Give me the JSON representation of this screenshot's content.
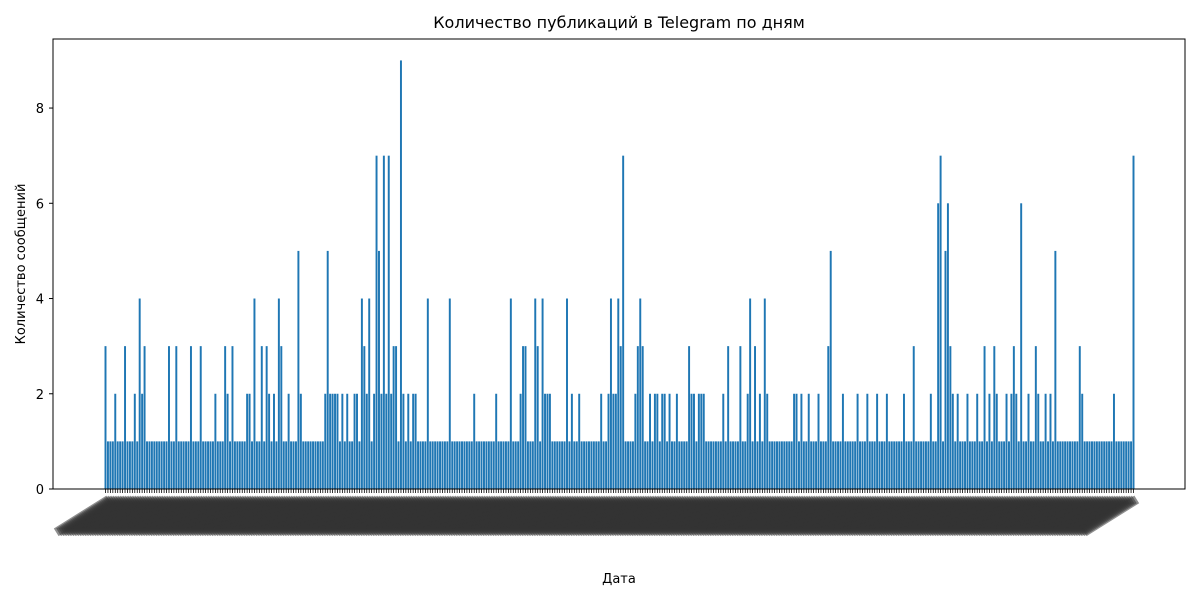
{
  "chart_data": {
    "type": "bar",
    "title": "Количество публикаций в Telegram по дням",
    "xlabel": "Дата",
    "ylabel": "Количество сообщений",
    "ylim": [
      0,
      9.45
    ],
    "yticks": [
      0,
      2,
      4,
      6,
      8
    ],
    "grid": false,
    "color": "#1f77b4",
    "x_tick_labels_note": "",
    "series": [
      {
        "values": [
          3,
          1,
          1,
          1,
          2,
          1,
          1,
          1,
          3,
          1,
          1,
          1,
          2,
          1,
          4,
          2,
          3,
          1,
          1,
          1,
          1,
          1,
          1,
          1,
          1,
          1,
          3,
          1,
          1,
          3,
          1,
          1,
          1,
          1,
          1,
          3,
          1,
          1,
          1,
          3,
          1,
          1,
          1,
          1,
          1,
          2,
          1,
          1,
          1,
          3,
          2,
          1,
          3,
          1,
          1,
          1,
          1,
          1,
          2,
          2,
          1,
          4,
          1,
          1,
          3,
          1,
          3,
          2,
          1,
          2,
          1,
          4,
          3,
          1,
          1,
          2,
          1,
          1,
          1,
          5,
          2,
          1,
          1,
          1,
          1,
          1,
          1,
          1,
          1,
          1,
          2,
          5,
          2,
          2,
          2,
          2,
          1,
          2,
          1,
          2,
          1,
          1,
          2,
          2,
          1,
          4,
          3,
          2,
          4,
          1,
          2,
          7,
          5,
          2,
          7,
          2,
          7,
          2,
          3,
          3,
          1,
          9,
          2,
          1,
          2,
          1,
          2,
          2,
          1,
          1,
          1,
          1,
          4,
          1,
          1,
          1,
          1,
          1,
          1,
          1,
          1,
          4,
          1,
          1,
          1,
          1,
          1,
          1,
          1,
          1,
          1,
          2,
          1,
          1,
          1,
          1,
          1,
          1,
          1,
          1,
          2,
          1,
          1,
          1,
          1,
          1,
          4,
          1,
          1,
          1,
          2,
          3,
          3,
          1,
          1,
          1,
          4,
          3,
          1,
          4,
          2,
          2,
          2,
          1,
          1,
          1,
          1,
          1,
          1,
          4,
          1,
          2,
          1,
          1,
          2,
          1,
          1,
          1,
          1,
          1,
          1,
          1,
          1,
          2,
          1,
          1,
          2,
          4,
          2,
          2,
          4,
          3,
          7,
          1,
          1,
          1,
          1,
          2,
          3,
          4,
          3,
          1,
          1,
          2,
          1,
          2,
          2,
          1,
          2,
          2,
          1,
          2,
          1,
          1,
          2,
          1,
          1,
          1,
          1,
          3,
          2,
          2,
          1,
          2,
          2,
          2,
          1,
          1,
          1,
          1,
          1,
          1,
          1,
          2,
          1,
          3,
          1,
          1,
          1,
          1,
          3,
          1,
          1,
          2,
          4,
          1,
          3,
          1,
          2,
          1,
          4,
          2,
          1,
          1,
          1,
          1,
          1,
          1,
          1,
          1,
          1,
          1,
          2,
          2,
          1,
          2,
          1,
          1,
          2,
          1,
          1,
          1,
          2,
          1,
          1,
          1,
          3,
          5,
          1,
          1,
          1,
          1,
          2,
          1,
          1,
          1,
          1,
          1,
          2,
          1,
          1,
          1,
          2,
          1,
          1,
          1,
          2,
          1,
          1,
          1,
          2,
          1,
          1,
          1,
          1,
          1,
          1,
          2,
          1,
          1,
          1,
          3,
          1,
          1,
          1,
          1,
          1,
          1,
          2,
          1,
          1,
          6,
          7,
          1,
          5,
          6,
          3,
          2,
          1,
          2,
          1,
          1,
          1,
          2,
          1,
          1,
          1,
          2,
          1,
          1,
          3,
          1,
          2,
          1,
          3,
          2,
          1,
          1,
          1,
          2,
          1,
          2,
          3,
          2,
          1,
          6,
          1,
          1,
          2,
          1,
          1,
          3,
          2,
          1,
          1,
          2,
          1,
          2,
          1,
          5,
          1,
          1,
          1,
          1,
          1,
          1,
          1,
          1,
          1,
          3,
          2,
          1,
          1,
          1,
          1,
          1,
          1,
          1,
          1,
          1,
          1,
          1,
          1,
          2,
          1,
          1,
          1,
          1,
          1,
          1,
          1,
          7
        ]
      }
    ]
  }
}
